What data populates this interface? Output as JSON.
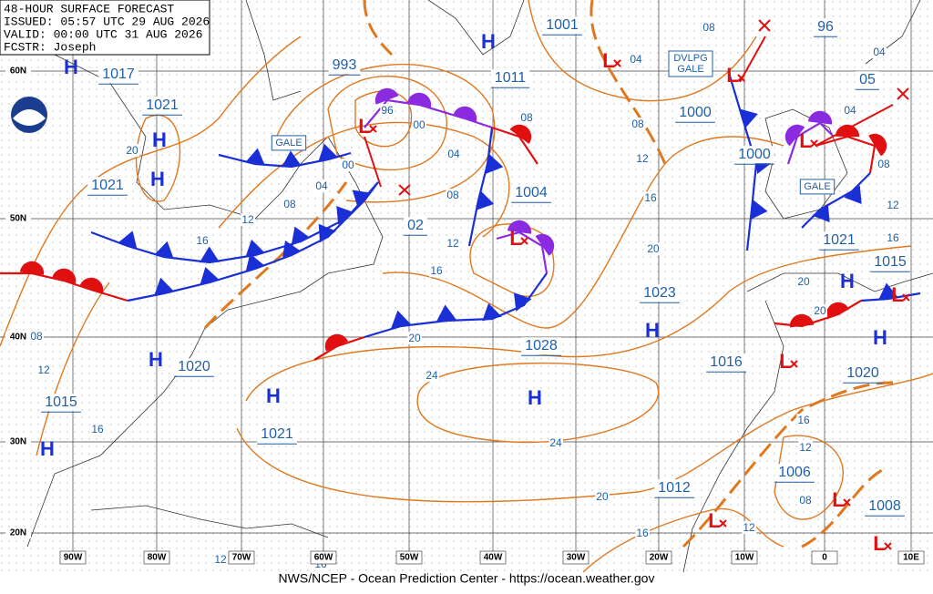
{
  "header": {
    "lines": [
      "48-HOUR SURFACE FORECAST",
      "ISSUED: 05:57 UTC 29 AUG 2026",
      "VALID:  00:00 UTC 31 AUG 2026",
      "FCSTR:  Joseph"
    ]
  },
  "pressure_labels": [
    "1017",
    "1021",
    "1021",
    "993",
    "1001",
    "1011",
    "1004",
    "1000",
    "1000",
    "96",
    "05",
    "1021",
    "1015",
    "1023",
    "1028",
    "1016",
    "1020",
    "1020",
    "1015",
    "1021",
    "1012",
    "1006",
    "1008",
    "02"
  ],
  "highs": [
    "H",
    "H",
    "H",
    "H",
    "H",
    "H",
    "H",
    "H",
    "H",
    "H",
    "H"
  ],
  "lows": [
    "L",
    "L",
    "L",
    "L",
    "L",
    "L",
    "L",
    "L",
    "L",
    "L"
  ],
  "isobar_labels": [
    "96",
    "00",
    "04",
    "08",
    "08",
    "12",
    "16",
    "20",
    "24",
    "24",
    "20",
    "16",
    "12",
    "16",
    "20",
    "08",
    "04",
    "08",
    "04",
    "08",
    "12",
    "16",
    "20",
    "20",
    "16",
    "12",
    "08",
    "12",
    "12",
    "16",
    "08",
    "04",
    "00",
    "20",
    "08",
    "12",
    "16",
    "12",
    "16",
    "04"
  ],
  "latitude_labels": [
    "60N",
    "50N",
    "40N",
    "30N",
    "20N"
  ],
  "longitude_labels": [
    "90W",
    "80W",
    "70W",
    "60W",
    "50W",
    "40W",
    "30W",
    "20W",
    "10W",
    "0",
    "10E"
  ],
  "warnings": [
    "GALE",
    "DVLPG",
    "GALE",
    "GALE"
  ],
  "footer": "NWS/NCEP - Ocean Prediction Center - https://ocean.weather.gov"
}
